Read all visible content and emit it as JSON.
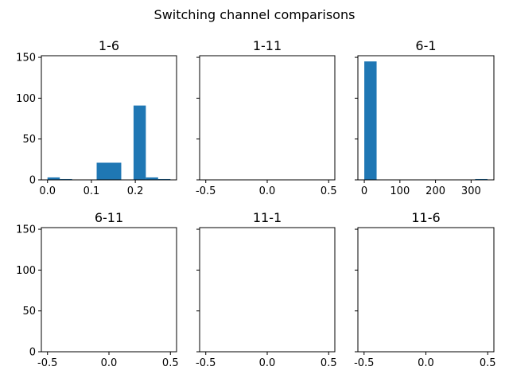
{
  "figure": {
    "title": "Switching channel comparisons"
  },
  "chart_data": [
    {
      "type": "bar",
      "title": "1-6",
      "xlim": [
        -0.014,
        0.294
      ],
      "ylim": [
        0,
        152
      ],
      "xticks": [
        0.0,
        0.1,
        0.2
      ],
      "xtick_labels": [
        "0.0",
        "0.1",
        "0.2"
      ],
      "yticks": [
        0,
        50,
        100,
        150
      ],
      "ytick_labels": [
        "0",
        "50",
        "100",
        "150"
      ],
      "bins": [
        {
          "x0": 0.0,
          "x1": 0.028,
          "value": 3
        },
        {
          "x0": 0.028,
          "x1": 0.056,
          "value": 1
        },
        {
          "x0": 0.056,
          "x1": 0.084,
          "value": 0
        },
        {
          "x0": 0.084,
          "x1": 0.112,
          "value": 0
        },
        {
          "x0": 0.112,
          "x1": 0.14,
          "value": 21
        },
        {
          "x0": 0.14,
          "x1": 0.168,
          "value": 21
        },
        {
          "x0": 0.168,
          "x1": 0.196,
          "value": 0
        },
        {
          "x0": 0.196,
          "x1": 0.224,
          "value": 91
        },
        {
          "x0": 0.224,
          "x1": 0.252,
          "value": 3
        },
        {
          "x0": 0.252,
          "x1": 0.28,
          "value": 1
        }
      ]
    },
    {
      "type": "bar",
      "title": "1-11",
      "xlim": [
        -0.55,
        0.55
      ],
      "ylim": [
        0,
        152
      ],
      "xticks": [
        -0.5,
        0.0,
        0.5
      ],
      "xtick_labels": [
        "-0.5",
        "0.0",
        "0.5"
      ],
      "yticks": [
        0,
        50,
        100,
        150
      ],
      "ytick_labels": [],
      "bins": []
    },
    {
      "type": "bar",
      "title": "6-1",
      "xlim": [
        -18,
        364
      ],
      "ylim": [
        0,
        152
      ],
      "xticks": [
        0,
        100,
        200,
        300
      ],
      "xtick_labels": [
        "0",
        "100",
        "200",
        "300"
      ],
      "yticks": [
        0,
        50,
        100,
        150
      ],
      "ytick_labels": [],
      "bins": [
        {
          "x0": 0,
          "x1": 34.6,
          "value": 145
        },
        {
          "x0": 34.6,
          "x1": 69.2,
          "value": 0
        },
        {
          "x0": 69.2,
          "x1": 103.8,
          "value": 0
        },
        {
          "x0": 103.8,
          "x1": 138.4,
          "value": 0
        },
        {
          "x0": 138.4,
          "x1": 173.0,
          "value": 0
        },
        {
          "x0": 173.0,
          "x1": 207.6,
          "value": 0
        },
        {
          "x0": 207.6,
          "x1": 242.2,
          "value": 0
        },
        {
          "x0": 242.2,
          "x1": 276.8,
          "value": 0
        },
        {
          "x0": 276.8,
          "x1": 311.4,
          "value": 0
        },
        {
          "x0": 311.4,
          "x1": 346.0,
          "value": 1
        }
      ]
    },
    {
      "type": "bar",
      "title": "6-11",
      "xlim": [
        -0.55,
        0.55
      ],
      "ylim": [
        0,
        152
      ],
      "xticks": [
        -0.5,
        0.0,
        0.5
      ],
      "xtick_labels": [
        "-0.5",
        "0.0",
        "0.5"
      ],
      "yticks": [
        0,
        50,
        100,
        150
      ],
      "ytick_labels": [
        "0",
        "50",
        "100",
        "150"
      ],
      "bins": []
    },
    {
      "type": "bar",
      "title": "11-1",
      "xlim": [
        -0.55,
        0.55
      ],
      "ylim": [
        0,
        152
      ],
      "xticks": [
        -0.5,
        0.0,
        0.5
      ],
      "xtick_labels": [
        "-0.5",
        "0.0",
        "0.5"
      ],
      "yticks": [
        0,
        50,
        100,
        150
      ],
      "ytick_labels": [],
      "bins": []
    },
    {
      "type": "bar",
      "title": "11-6",
      "xlim": [
        -0.55,
        0.55
      ],
      "ylim": [
        0,
        152
      ],
      "xticks": [
        -0.5,
        0.0,
        0.5
      ],
      "xtick_labels": [
        "-0.5",
        "0.0",
        "0.5"
      ],
      "yticks": [
        0,
        50,
        100,
        150
      ],
      "ytick_labels": [],
      "bins": []
    }
  ]
}
